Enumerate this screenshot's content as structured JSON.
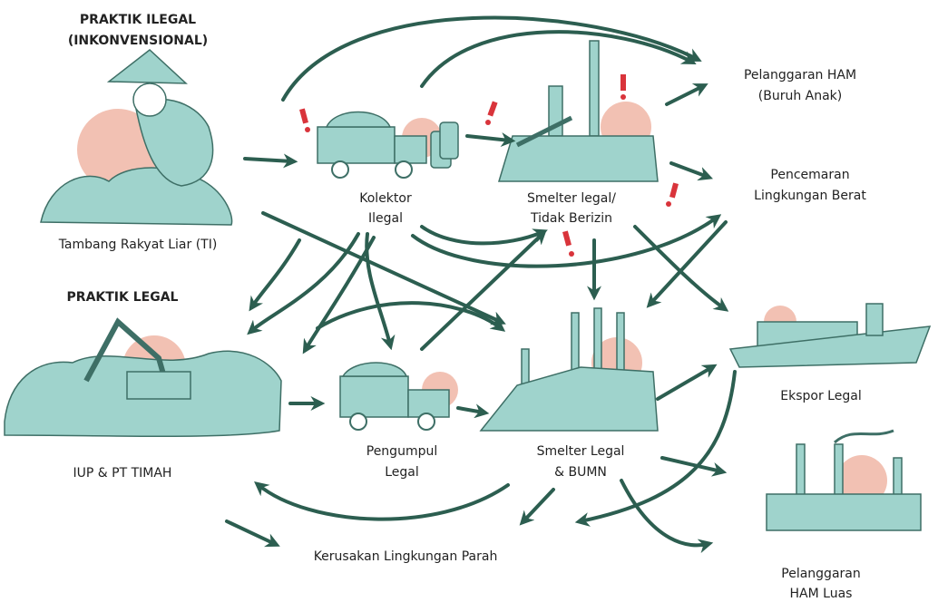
{
  "illegal_section": {
    "title": [
      "PRAKTIK ILEGAL",
      "(INKONVENSIONAL)"
    ]
  },
  "legal_section": {
    "title": [
      "PRAKTIK LEGAL"
    ]
  },
  "nodes": [
    {
      "label": [
        "Tambang Rakyat Liar (TI)"
      ]
    },
    {
      "label": [
        "IUP & PT TIMAH"
      ]
    },
    {
      "label": [
        "Kolektor",
        "Ilegal"
      ]
    },
    {
      "label": [
        "Smelter legal/",
        "Tidak Berizin"
      ]
    },
    {
      "label": [
        "Pengumpul",
        "Legal"
      ]
    },
    {
      "label": [
        "Smelter Legal",
        "& BUMN"
      ]
    },
    {
      "label": [
        "Pelanggaran HAM",
        "(Buruh Anak)"
      ]
    },
    {
      "label": [
        "Pencemaran",
        "Lingkungan Berat"
      ]
    },
    {
      "label": [
        "Ekspor Legal"
      ]
    },
    {
      "label": [
        "Pelanggaran",
        "HAM Luas"
      ]
    },
    {
      "label": [
        "Kerusakan Lingkungan Parah"
      ]
    }
  ]
}
